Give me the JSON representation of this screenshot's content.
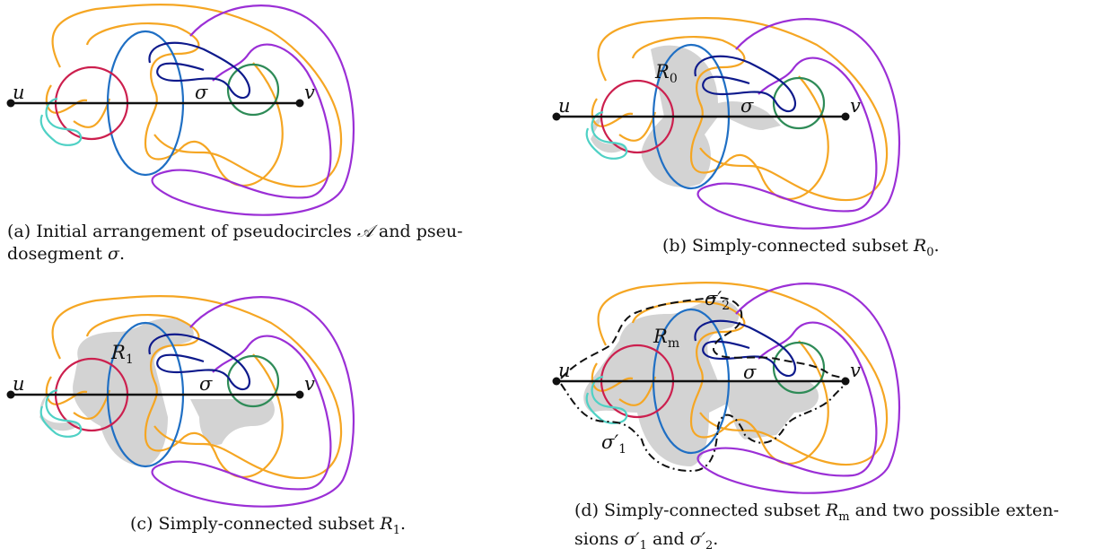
{
  "panels": {
    "a": {
      "u": "u",
      "v": "v",
      "sigma": "σ",
      "caption_tag": "(a)",
      "caption_l1": "Initial arrangement of pseudocircles",
      "caption_A": "𝒜",
      "caption_l1b": "and pseu-",
      "caption_l2": "dosegment",
      "caption_sigma": "σ",
      "caption_end": "."
    },
    "b": {
      "u": "u",
      "v": "v",
      "sigma": "σ",
      "region": "R",
      "region_sub": "0",
      "caption_tag": "(b)",
      "caption_text": "Simply-connected subset",
      "caption_R": "R",
      "caption_R_sub": "0",
      "caption_end": "."
    },
    "c": {
      "u": "u",
      "v": "v",
      "sigma": "σ",
      "region": "R",
      "region_sub": "1",
      "caption_tag": "(c)",
      "caption_text": "Simply-connected subset",
      "caption_R": "R",
      "caption_R_sub": "1",
      "caption_end": "."
    },
    "d": {
      "u": "u",
      "v": "v",
      "sigma": "σ",
      "region": "R",
      "region_sub": "m",
      "ext1": "σ′",
      "ext1_sub": "1",
      "ext2": "σ′",
      "ext2_sub": "2",
      "caption_tag": "(d)",
      "caption_text": "Simply-connected subset",
      "caption_R": "R",
      "caption_R_sub": "m",
      "caption_l1b": "and two possible exten-",
      "caption_l2": "sions",
      "caption_s1": "σ′",
      "caption_s1_sub": "1",
      "caption_and": "and",
      "caption_s2": "σ′",
      "caption_s2_sub": "2",
      "caption_end": "."
    }
  },
  "colors": {
    "orange": "#f5a623",
    "purple": "#9b2fd6",
    "blue": "#1f6fc4",
    "crimson": "#cc1f4e",
    "green": "#2e8b57",
    "navy": "#0e1a8c",
    "cyan": "#4fd1c5",
    "fill": "#d3d3d3",
    "black": "#111111"
  }
}
